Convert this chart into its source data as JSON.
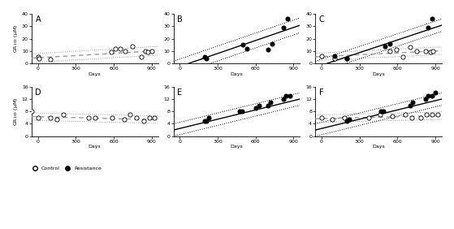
{
  "panels": [
    {
      "label": "A",
      "ylim": [
        0,
        40
      ],
      "yticks": [
        0,
        10,
        20,
        30,
        40
      ],
      "control_x": [
        0,
        10,
        100,
        580,
        610,
        650,
        690,
        750,
        820,
        850,
        870,
        900
      ],
      "control_y": [
        5,
        4,
        3,
        9,
        12,
        12,
        10,
        14,
        5,
        10,
        9,
        10
      ],
      "resist_x": null,
      "resist_y": null,
      "ctrl_slope": 0.006,
      "ctrl_intercept": 4.5,
      "ctrl_ci_upper": 3.5,
      "ctrl_ci_lower": 3.5,
      "res_slope": null,
      "res_intercept": null,
      "res_ci_upper": null,
      "res_ci_lower": null,
      "show_resist": false,
      "show_ctrl_line": true,
      "show_ctrl_ci": true
    },
    {
      "label": "B",
      "ylim": [
        0,
        40
      ],
      "yticks": [
        0,
        10,
        20,
        30,
        40
      ],
      "control_x": null,
      "control_y": null,
      "resist_x": [
        200,
        210,
        500,
        530,
        700,
        730,
        820,
        850
      ],
      "resist_y": [
        5,
        4,
        15,
        12,
        11,
        16,
        29,
        36
      ],
      "ctrl_slope": null,
      "ctrl_intercept": null,
      "ctrl_ci_upper": null,
      "ctrl_ci_lower": null,
      "res_slope": 0.035,
      "res_intercept": -2.5,
      "res_ci_upper": 6,
      "res_ci_lower": 6,
      "show_resist": true,
      "show_ctrl_line": false,
      "show_ctrl_ci": false
    },
    {
      "label": "C",
      "ylim": [
        0,
        40
      ],
      "yticks": [
        0,
        10,
        20,
        30,
        40
      ],
      "control_x": [
        0,
        100,
        200,
        540,
        590,
        640,
        700,
        750,
        820,
        860,
        880
      ],
      "control_y": [
        6,
        4,
        4,
        10,
        11,
        5,
        13,
        10,
        10,
        9,
        10
      ],
      "resist_x": [
        100,
        200,
        500,
        540,
        840,
        870
      ],
      "resist_y": [
        6,
        4,
        14,
        16,
        29,
        36
      ],
      "ctrl_slope": 0.005,
      "ctrl_intercept": 5.5,
      "ctrl_ci_upper": 3.0,
      "ctrl_ci_lower": 3.0,
      "res_slope": 0.034,
      "res_intercept": -1.5,
      "res_ci_upper": 5,
      "res_ci_lower": 5,
      "show_resist": true,
      "show_ctrl_line": true,
      "show_ctrl_ci": true
    },
    {
      "label": "D",
      "ylim": [
        0,
        16
      ],
      "yticks": [
        0,
        4,
        8,
        12,
        16
      ],
      "control_x": [
        -50,
        0,
        100,
        150,
        200,
        400,
        450,
        590,
        680,
        730,
        780,
        840,
        880,
        920
      ],
      "control_y": [
        8,
        6,
        6,
        5.5,
        7,
        6,
        6,
        6,
        5.5,
        7,
        6,
        5,
        6,
        6
      ],
      "resist_x": null,
      "resist_y": null,
      "ctrl_slope": -0.001,
      "ctrl_intercept": 6.3,
      "ctrl_ci_upper": 1.2,
      "ctrl_ci_lower": 1.2,
      "res_slope": null,
      "res_intercept": null,
      "res_ci_upper": null,
      "res_ci_lower": null,
      "show_resist": false,
      "show_ctrl_line": true,
      "show_ctrl_ci": true
    },
    {
      "label": "E",
      "ylim": [
        0,
        16
      ],
      "yticks": [
        0,
        4,
        8,
        12,
        16
      ],
      "control_x": null,
      "control_y": null,
      "resist_x": [
        200,
        210,
        230,
        470,
        490,
        600,
        630,
        700,
        720,
        820,
        840,
        870
      ],
      "resist_y": [
        5,
        5,
        6,
        8,
        8,
        9,
        10,
        10,
        11,
        12,
        13,
        13
      ],
      "ctrl_slope": null,
      "ctrl_intercept": null,
      "ctrl_ci_upper": null,
      "ctrl_ci_lower": null,
      "res_slope": 0.01,
      "res_intercept": 2.5,
      "res_ci_upper": 2.0,
      "res_ci_lower": 2.0,
      "show_resist": true,
      "show_ctrl_line": false,
      "show_ctrl_ci": false
    },
    {
      "label": "F",
      "ylim": [
        0,
        16
      ],
      "yticks": [
        0,
        4,
        8,
        12,
        16
      ],
      "control_x": [
        0,
        80,
        180,
        370,
        460,
        560,
        660,
        710,
        780,
        830,
        870,
        920
      ],
      "control_y": [
        6,
        5.5,
        6,
        6,
        7,
        6.5,
        7,
        6,
        6,
        7,
        7,
        7
      ],
      "resist_x": [
        200,
        215,
        470,
        490,
        700,
        720,
        820,
        840,
        870,
        900
      ],
      "resist_y": [
        5,
        5.5,
        8,
        8,
        10,
        11,
        12,
        13,
        13,
        14
      ],
      "ctrl_slope": 0.001,
      "ctrl_intercept": 5.7,
      "ctrl_ci_upper": 1.2,
      "ctrl_ci_lower": 1.2,
      "res_slope": 0.01,
      "res_intercept": 2.5,
      "res_ci_upper": 2.0,
      "res_ci_lower": 2.0,
      "show_resist": true,
      "show_ctrl_line": true,
      "show_ctrl_ci": true
    }
  ],
  "xlabel": "Days",
  "ylabel": "GR$_{100}$ (μM)",
  "xlim": [
    -50,
    950
  ],
  "xticks": [
    0,
    300,
    600,
    900
  ],
  "legend_control_label": "Control",
  "legend_resist_label": "Resistance",
  "bg_color": "#ffffff",
  "ctrl_line_color": "#999999",
  "res_line_color": "#000000",
  "lw": 1.0,
  "ci_lw": 0.7,
  "marker_size": 14
}
